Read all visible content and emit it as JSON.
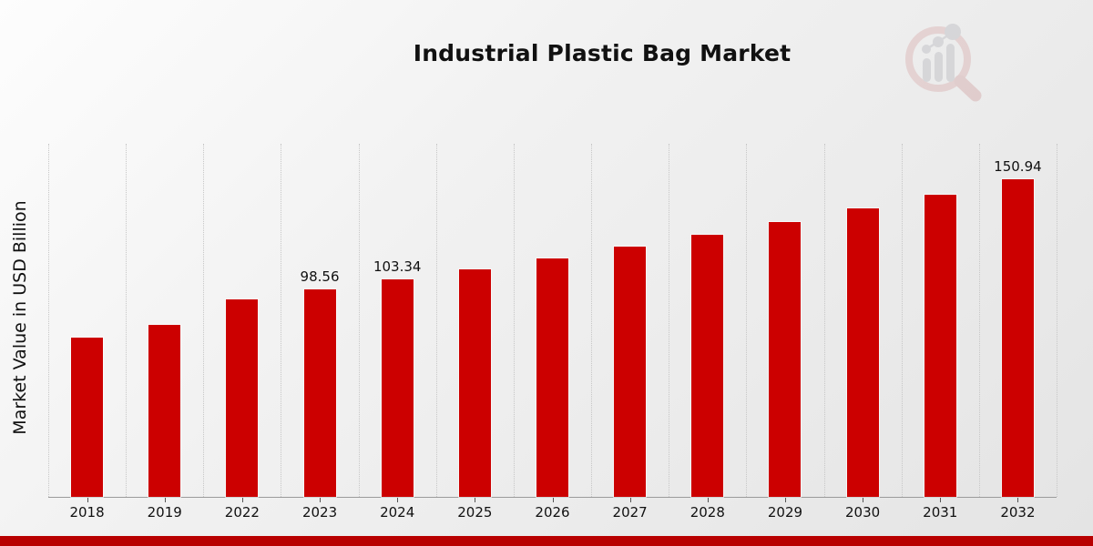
{
  "title": "Industrial Plastic Bag Market",
  "y_axis_label": "Market Value in USD Billion",
  "chart_data": {
    "type": "bar",
    "title": "Industrial Plastic Bag Market",
    "xlabel": "",
    "ylabel": "Market Value in USD Billion",
    "unit": "USD Billion",
    "categories": [
      "2018",
      "2019",
      "2022",
      "2023",
      "2024",
      "2025",
      "2026",
      "2027",
      "2028",
      "2029",
      "2030",
      "2031",
      "2032"
    ],
    "values": [
      75.7,
      81.9,
      94.0,
      98.56,
      103.34,
      108.35,
      113.6,
      119.11,
      124.89,
      130.94,
      137.29,
      143.95,
      150.94
    ],
    "bar_labels": [
      "",
      "",
      "",
      "98.56",
      "103.34",
      "",
      "",
      "",
      "",
      "",
      "",
      "",
      "150.94"
    ],
    "ylim": [
      0,
      168
    ],
    "grid": "vertical-dotted",
    "legend": "none",
    "bar_color": "#CC0000"
  },
  "colors": {
    "bar": "#CC0000",
    "accent_strip": "#B80000",
    "gridline": "#C7C7C7",
    "axis_line": "#9B9B9B",
    "text": "#111111",
    "logo_pink": "#DDBCBC",
    "logo_gray": "#C5C5C9"
  },
  "logo": {
    "name": "magnifier-bar-chart-watermark"
  }
}
